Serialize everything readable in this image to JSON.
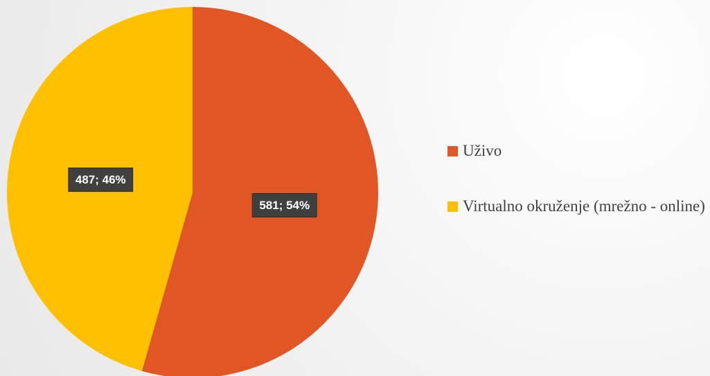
{
  "chart_data": {
    "type": "pie",
    "categories": [
      "Uživo",
      "Virtualno okruženje (mrežno - online)"
    ],
    "values": [
      581,
      487
    ],
    "value_labels": [
      "581; 54%",
      "487; 46%"
    ],
    "colors": [
      "#e05625",
      "#ffc000"
    ]
  }
}
